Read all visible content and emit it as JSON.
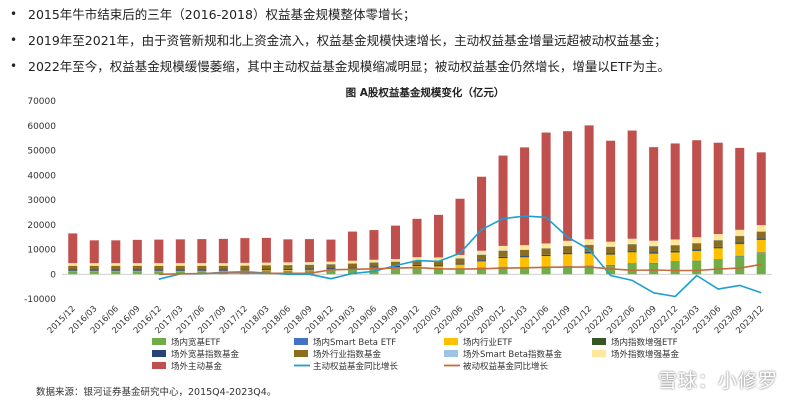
{
  "bullets": [
    "2015年牛市结束后的三年（2016-2018）权益基金规模整体零增长；",
    "2019年至2021年，由于资管新规和北上资金流入，权益基金规模快速增长，主动权益基金增量远超被动权益基金；",
    "2022年至今，权益基金规模缓慢萎缩，其中主动权益基金规模缩减明显；被动权益基金仍然增长，增量以ETF为主。"
  ],
  "bullet_marker": "•",
  "source": "数据来源：银河证券基金研究中心，2015Q4-2023Q4。",
  "watermark": "雪球：小修罗",
  "chart_data": {
    "type": "bar",
    "title": "图 A股权益基金规模变化（亿元）",
    "categories": [
      "2015/12",
      "2016/03",
      "2016/06",
      "2016/09",
      "2016/12",
      "2017/03",
      "2017/06",
      "2017/09",
      "2017/12",
      "2018/03",
      "2018/06",
      "2018/09",
      "2018/12",
      "2019/03",
      "2019/06",
      "2019/09",
      "2019/12",
      "2020/03",
      "2020/06",
      "2020/09",
      "2020/12",
      "2021/03",
      "2021/06",
      "2021/09",
      "2021/12",
      "2022/03",
      "2022/06",
      "2022/09",
      "2022/12",
      "2023/03",
      "2023/06",
      "2023/09",
      "2023/12"
    ],
    "ylim": [
      -10000,
      70000
    ],
    "yticks": [
      "-10000",
      "0",
      "10000",
      "20000",
      "30000",
      "40000",
      "50000",
      "60000",
      "70000"
    ],
    "stacked_series": [
      {
        "name": "场内宽基ETF",
        "color": "#70ad47",
        "values": [
          1000,
          1000,
          1000,
          1000,
          1000,
          1000,
          1000,
          1000,
          1100,
          1200,
          1300,
          1400,
          1600,
          1800,
          2000,
          2100,
          2300,
          2000,
          2200,
          2500,
          2800,
          2600,
          2800,
          3000,
          3200,
          3500,
          4200,
          4300,
          5000,
          5200,
          5800,
          7200,
          8500
        ]
      },
      {
        "name": "场内Smart Beta ETF",
        "color": "#4472c4",
        "values": [
          100,
          100,
          100,
          100,
          100,
          100,
          100,
          100,
          100,
          100,
          100,
          100,
          100,
          150,
          150,
          150,
          200,
          200,
          200,
          200,
          250,
          250,
          250,
          300,
          300,
          300,
          300,
          300,
          300,
          300,
          300,
          300,
          300
        ]
      },
      {
        "name": "场内行业ETF",
        "color": "#ffc000",
        "values": [
          300,
          300,
          300,
          300,
          300,
          300,
          300,
          300,
          300,
          300,
          300,
          300,
          300,
          400,
          500,
          600,
          800,
          1000,
          1500,
          2500,
          3500,
          4000,
          4300,
          4800,
          5000,
          4200,
          4500,
          3800,
          3600,
          4000,
          4500,
          4800,
          5200
        ]
      },
      {
        "name": "场内指数增强ETF",
        "color": "#375623",
        "values": [
          0,
          0,
          0,
          0,
          0,
          0,
          0,
          0,
          0,
          0,
          0,
          0,
          0,
          0,
          0,
          0,
          0,
          0,
          0,
          0,
          0,
          0,
          0,
          0,
          50,
          50,
          50,
          50,
          50,
          50,
          50,
          50,
          50
        ]
      },
      {
        "name": "场外宽基指数基金",
        "color": "#264478",
        "values": [
          500,
          500,
          500,
          500,
          500,
          500,
          500,
          500,
          500,
          500,
          500,
          500,
          500,
          500,
          500,
          500,
          500,
          500,
          500,
          500,
          500,
          500,
          500,
          500,
          500,
          500,
          500,
          500,
          500,
          500,
          500,
          500,
          500
        ]
      },
      {
        "name": "场外行业指数基金",
        "color": "#8c6d1f",
        "values": [
          1500,
          1500,
          1500,
          1500,
          1500,
          1500,
          1500,
          1500,
          1500,
          1500,
          1500,
          1500,
          1500,
          1500,
          1600,
          1700,
          1800,
          1800,
          2000,
          2200,
          2500,
          2500,
          2600,
          2800,
          2800,
          2500,
          2600,
          2400,
          2300,
          2500,
          2600,
          2600,
          2700
        ]
      },
      {
        "name": "场外Smart Beta指数基金",
        "color": "#9dc3e6",
        "values": [
          100,
          100,
          100,
          100,
          100,
          100,
          100,
          100,
          100,
          100,
          100,
          100,
          100,
          100,
          100,
          100,
          100,
          100,
          100,
          100,
          100,
          100,
          100,
          100,
          100,
          100,
          100,
          100,
          100,
          100,
          100,
          100,
          100
        ]
      },
      {
        "name": "场外指数增强基金",
        "color": "#ffe699",
        "values": [
          1000,
          1000,
          1000,
          1000,
          1000,
          1000,
          1000,
          1000,
          1000,
          1000,
          1000,
          1000,
          1000,
          1000,
          1000,
          1000,
          1200,
          1200,
          1300,
          1500,
          1800,
          1800,
          1900,
          2000,
          2200,
          2000,
          2100,
          2100,
          2200,
          2300,
          2400,
          2400,
          2500
        ]
      },
      {
        "name": "场外主动基金",
        "color": "#c0504d",
        "values": [
          12000,
          9200,
          9200,
          9400,
          9500,
          9600,
          9700,
          9800,
          10000,
          10000,
          9300,
          9300,
          8900,
          11800,
          12000,
          13500,
          15500,
          17200,
          22700,
          29900,
          36500,
          39500,
          44800,
          44300,
          46000,
          40800,
          43700,
          37800,
          38800,
          39200,
          36900,
          33100,
          29400
        ]
      }
    ],
    "line_series": [
      {
        "name": "主动权益基金同比增长",
        "color": "#1f9fd1",
        "x_start_index": 4,
        "values": [
          -2000,
          200,
          200,
          800,
          1000,
          500,
          0,
          0,
          -1800,
          300,
          1200,
          3500,
          5500,
          5200,
          8500,
          18000,
          22500,
          23500,
          23000,
          15000,
          10000,
          -500,
          -2500,
          -7500,
          -9000,
          -500,
          -6000,
          -4500,
          -7500
        ]
      },
      {
        "name": "被动权益基金同比增长",
        "color": "#c56b3d",
        "x_start_index": 4,
        "values": [
          0,
          200,
          300,
          500,
          500,
          400,
          400,
          400,
          1800,
          2000,
          2200,
          2500,
          2700,
          2200,
          2100,
          2200,
          2500,
          2600,
          2800,
          2900,
          2900,
          2200,
          1600,
          1700,
          1500,
          1500,
          2100,
          2500,
          4000
        ]
      }
    ]
  }
}
